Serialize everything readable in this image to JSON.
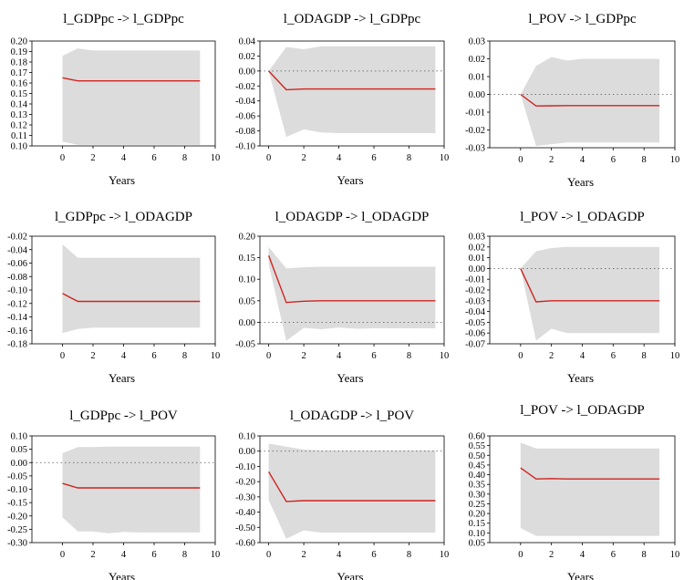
{
  "colors": {
    "band": "#dcdcdc",
    "line": "#d0231f",
    "frame": "#000000",
    "zero": "#555555"
  },
  "chart_data": [
    {
      "type": "area",
      "title": "l_GDPpc -> l_GDPpc",
      "xlabel": "Years",
      "xlim": [
        -2,
        10
      ],
      "xticks": [
        0,
        2,
        4,
        6,
        8,
        10
      ],
      "ylim": [
        0.1,
        0.2
      ],
      "yticks": [
        "0.20",
        "0.19",
        "0.18",
        "0.17",
        "0.16",
        "0.15",
        "0.14",
        "0.13",
        "0.12",
        "0.11",
        "0.10"
      ],
      "x": [
        0,
        1,
        2,
        3,
        4,
        5,
        6,
        7,
        8,
        9
      ],
      "irf": [
        0.165,
        0.162,
        0.162,
        0.162,
        0.162,
        0.162,
        0.162,
        0.162,
        0.162,
        0.162
      ],
      "upper": [
        0.186,
        0.193,
        0.191,
        0.191,
        0.191,
        0.191,
        0.191,
        0.191,
        0.191,
        0.191
      ],
      "lower": [
        0.104,
        0.101,
        0.101,
        0.101,
        0.101,
        0.101,
        0.101,
        0.101,
        0.101,
        0.101
      ]
    },
    {
      "type": "area",
      "title": "l_ODAGDP -> l_GDPpc",
      "xlabel": "Years",
      "xlim": [
        -0.5,
        10
      ],
      "xticks": [
        0,
        2,
        4,
        6,
        8,
        10
      ],
      "ylim": [
        -0.1,
        0.04
      ],
      "yticks": [
        "0.04",
        "0.02",
        "0.00",
        "-0.02",
        "-0.04",
        "-0.06",
        "-0.08",
        "-0.10"
      ],
      "zero_line": true,
      "x": [
        0,
        1,
        2,
        3,
        4,
        5,
        6,
        7,
        8,
        9,
        9.5
      ],
      "irf": [
        0.0,
        -0.025,
        -0.024,
        -0.024,
        -0.024,
        -0.024,
        -0.024,
        -0.024,
        -0.024,
        -0.024,
        -0.024
      ],
      "upper": [
        0.0,
        0.032,
        0.029,
        0.033,
        0.033,
        0.033,
        0.033,
        0.033,
        0.033,
        0.033,
        0.033
      ],
      "lower": [
        0.0,
        -0.088,
        -0.078,
        -0.082,
        -0.083,
        -0.083,
        -0.083,
        -0.083,
        -0.083,
        -0.083,
        -0.083
      ]
    },
    {
      "type": "area",
      "title": "l_POV -> l_GDPpc",
      "xlabel": "Years",
      "xlim": [
        -2,
        10
      ],
      "xticks": [
        0,
        2,
        4,
        6,
        8,
        10
      ],
      "ylim": [
        -0.03,
        0.03
      ],
      "yticks": [
        "0.03",
        "0.02",
        "0.01",
        "0.00",
        "-0.01",
        "-0.02",
        "-0.03"
      ],
      "zero_line": true,
      "x": [
        0,
        1,
        2,
        3,
        4,
        5,
        6,
        7,
        8,
        9
      ],
      "irf": [
        0.0,
        -0.0065,
        -0.0064,
        -0.0063,
        -0.0063,
        -0.0063,
        -0.0063,
        -0.0063,
        -0.0063,
        -0.0063
      ],
      "upper": [
        0.0,
        0.016,
        0.021,
        0.019,
        0.02,
        0.02,
        0.02,
        0.02,
        0.02,
        0.02
      ],
      "lower": [
        0.0,
        -0.029,
        -0.028,
        -0.027,
        -0.027,
        -0.027,
        -0.027,
        -0.027,
        -0.027,
        -0.027
      ]
    },
    {
      "type": "area",
      "title": "l_GDPpc -> l_ODAGDP",
      "xlabel": "Years",
      "xlim": [
        -2,
        10
      ],
      "xticks": [
        0,
        2,
        4,
        6,
        8,
        10
      ],
      "ylim": [
        -0.18,
        -0.02
      ],
      "yticks": [
        "-0.02",
        "-0.04",
        "-0.06",
        "-0.08",
        "-0.10",
        "-0.12",
        "-0.14",
        "-0.16",
        "-0.18"
      ],
      "x": [
        0,
        1,
        2,
        3,
        4,
        5,
        6,
        7,
        8,
        9
      ],
      "irf": [
        -0.105,
        -0.117,
        -0.117,
        -0.117,
        -0.117,
        -0.117,
        -0.117,
        -0.117,
        -0.117,
        -0.117
      ],
      "upper": [
        -0.032,
        -0.052,
        -0.052,
        -0.052,
        -0.052,
        -0.052,
        -0.052,
        -0.052,
        -0.052,
        -0.052
      ],
      "lower": [
        -0.164,
        -0.158,
        -0.156,
        -0.156,
        -0.156,
        -0.156,
        -0.156,
        -0.156,
        -0.156,
        -0.156
      ]
    },
    {
      "type": "area",
      "title": "l_ODAGDP -> l_ODAGDP",
      "xlabel": "Years",
      "xlim": [
        -0.5,
        10
      ],
      "xticks": [
        0,
        2,
        4,
        6,
        8,
        10
      ],
      "ylim": [
        -0.05,
        0.2
      ],
      "yticks": [
        "0.20",
        "0.15",
        "0.10",
        "0.05",
        "0.00",
        "-0.05"
      ],
      "zero_line": true,
      "x": [
        0,
        1,
        2,
        3,
        4,
        5,
        6,
        7,
        8,
        9,
        9.5
      ],
      "irf": [
        0.155,
        0.046,
        0.049,
        0.05,
        0.05,
        0.05,
        0.05,
        0.05,
        0.05,
        0.05,
        0.05
      ],
      "upper": [
        0.175,
        0.125,
        0.128,
        0.129,
        0.129,
        0.129,
        0.129,
        0.129,
        0.129,
        0.129,
        0.129
      ],
      "lower": [
        0.135,
        -0.043,
        -0.013,
        -0.016,
        -0.012,
        -0.015,
        -0.014,
        -0.014,
        -0.014,
        -0.014,
        -0.014
      ]
    },
    {
      "type": "area",
      "title": "l_POV -> l_ODAGDP",
      "xlabel": "Years",
      "xlim": [
        -2,
        10
      ],
      "xticks": [
        0,
        2,
        4,
        6,
        8,
        10
      ],
      "ylim": [
        -0.07,
        0.03
      ],
      "yticks": [
        "0.03",
        "0.02",
        "0.01",
        "0.00",
        "-0.01",
        "-0.02",
        "-0.03",
        "-0.04",
        "-0.05",
        "-0.06",
        "-0.07"
      ],
      "zero_line": true,
      "x": [
        0,
        1,
        2,
        3,
        4,
        5,
        6,
        7,
        8,
        9
      ],
      "irf": [
        0.0,
        -0.031,
        -0.03,
        -0.03,
        -0.03,
        -0.03,
        -0.03,
        -0.03,
        -0.03,
        -0.03
      ],
      "upper": [
        0.0,
        0.016,
        0.019,
        0.02,
        0.02,
        0.02,
        0.02,
        0.02,
        0.02,
        0.02
      ],
      "lower": [
        0.0,
        -0.067,
        -0.056,
        -0.06,
        -0.06,
        -0.06,
        -0.06,
        -0.06,
        -0.06,
        -0.06
      ]
    },
    {
      "type": "area",
      "title": "l_GDPpc -> l_POV",
      "xlabel": "Years",
      "xlim": [
        -2,
        10
      ],
      "xticks": [
        0,
        2,
        4,
        6,
        8,
        10
      ],
      "ylim": [
        -0.3,
        0.1
      ],
      "yticks": [
        "0.10",
        "0.05",
        "0.00",
        "-0.05",
        "-0.10",
        "-0.15",
        "-0.20",
        "-0.25",
        "-0.30"
      ],
      "zero_line": true,
      "x": [
        0,
        1,
        2,
        3,
        4,
        5,
        6,
        7,
        8,
        9
      ],
      "irf": [
        -0.078,
        -0.095,
        -0.095,
        -0.095,
        -0.095,
        -0.095,
        -0.095,
        -0.095,
        -0.095,
        -0.095
      ],
      "upper": [
        0.035,
        0.058,
        0.058,
        0.06,
        0.06,
        0.06,
        0.06,
        0.06,
        0.06,
        0.06
      ],
      "lower": [
        -0.205,
        -0.258,
        -0.258,
        -0.265,
        -0.26,
        -0.262,
        -0.262,
        -0.262,
        -0.262,
        -0.262
      ]
    },
    {
      "type": "area",
      "title": "l_ODAGDP -> l_POV",
      "xlabel": "Years",
      "xlim": [
        -0.5,
        10
      ],
      "xticks": [
        0,
        2,
        4,
        6,
        8,
        10
      ],
      "ylim": [
        -0.6,
        0.1
      ],
      "yticks": [
        "0.10",
        "0.00",
        "-0.10",
        "-0.20",
        "-0.30",
        "-0.40",
        "-0.50",
        "-0.60"
      ],
      "zero_line": true,
      "x": [
        0,
        1,
        2,
        3,
        4,
        5,
        6,
        7,
        8,
        9,
        9.5
      ],
      "irf": [
        -0.135,
        -0.33,
        -0.325,
        -0.325,
        -0.325,
        -0.325,
        -0.325,
        -0.325,
        -0.325,
        -0.325,
        -0.325
      ],
      "upper": [
        0.05,
        0.03,
        0.01,
        0.005,
        0.005,
        0.005,
        0.005,
        0.005,
        0.005,
        0.005,
        0.005
      ],
      "lower": [
        -0.32,
        -0.575,
        -0.52,
        -0.535,
        -0.535,
        -0.535,
        -0.535,
        -0.535,
        -0.535,
        -0.535,
        -0.535
      ]
    },
    {
      "type": "area",
      "title": "l_POV -> l_ODAGDP",
      "xlabel": "Years",
      "xlim": [
        -2,
        10
      ],
      "xticks": [
        0,
        2,
        4,
        6,
        8,
        10
      ],
      "ylim": [
        0.05,
        0.6
      ],
      "yticks": [
        "0.60",
        "0.55",
        "0.50",
        "0.45",
        "0.40",
        "0.35",
        "0.30",
        "0.25",
        "0.20",
        "0.15",
        "0.10",
        "0.05"
      ],
      "x": [
        0,
        1,
        2,
        3,
        4,
        5,
        6,
        7,
        8,
        9
      ],
      "irf": [
        0.435,
        0.378,
        0.38,
        0.378,
        0.378,
        0.378,
        0.378,
        0.378,
        0.378,
        0.378
      ],
      "upper": [
        0.565,
        0.535,
        0.535,
        0.535,
        0.535,
        0.535,
        0.535,
        0.535,
        0.535,
        0.535
      ],
      "lower": [
        0.125,
        0.085,
        0.085,
        0.085,
        0.085,
        0.085,
        0.085,
        0.085,
        0.085,
        0.085
      ]
    }
  ]
}
